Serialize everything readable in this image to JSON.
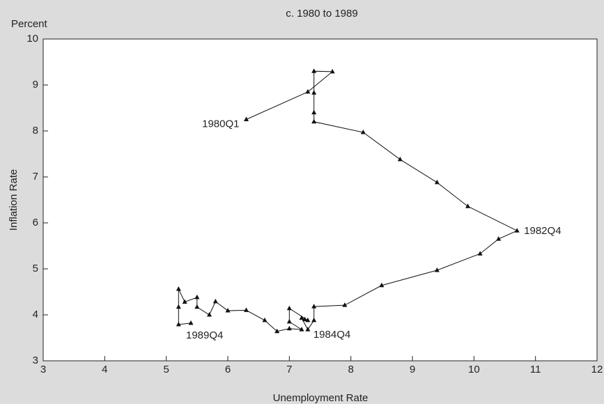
{
  "chart_data": {
    "type": "line",
    "title": "c. 1980 to 1989",
    "y_unit": "Percent",
    "x_label": "Unemployment Rate",
    "y_label": "Inflation Rate",
    "color": "#111111",
    "x": [
      6.3,
      7.3,
      7.7,
      7.4,
      7.4,
      7.4,
      7.4,
      8.2,
      8.8,
      9.4,
      9.9,
      10.7,
      10.4,
      10.1,
      9.4,
      8.5,
      7.9,
      7.4,
      7.4,
      7.3,
      7.2,
      7.25,
      7.3,
      7.0,
      7.0,
      7.2,
      7.0,
      6.8,
      6.6,
      6.3,
      6.0,
      5.8,
      5.7,
      5.5,
      5.5,
      5.3,
      5.2,
      5.2,
      5.2,
      5.4
    ],
    "values": [
      8.25,
      8.85,
      9.29,
      9.3,
      8.83,
      8.4,
      8.2,
      7.97,
      7.38,
      6.88,
      6.36,
      5.83,
      5.65,
      5.33,
      4.97,
      4.64,
      4.21,
      4.18,
      3.88,
      3.68,
      3.93,
      3.9,
      3.88,
      4.14,
      3.85,
      3.68,
      3.7,
      3.64,
      3.88,
      4.1,
      4.09,
      4.29,
      4.0,
      4.17,
      4.38,
      4.28,
      4.56,
      4.17,
      3.79,
      3.82
    ],
    "annotations": [
      "1980Q1",
      "1982Q4",
      "1984Q4",
      "1989Q4"
    ],
    "xlim": [
      3,
      12
    ],
    "xticks": [
      3,
      4,
      5,
      6,
      7,
      8,
      9,
      10,
      11,
      12
    ],
    "ylim": [
      3,
      10
    ],
    "yticks": [
      3,
      4,
      5,
      6,
      7,
      8,
      9,
      10
    ]
  }
}
